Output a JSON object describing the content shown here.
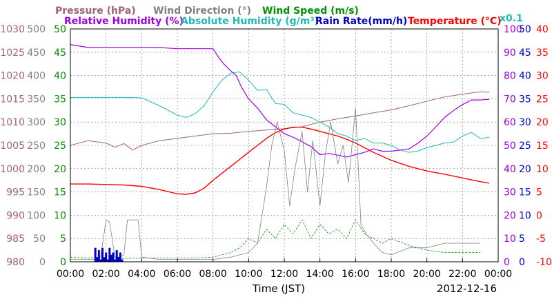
{
  "chart_data": {
    "type": "line",
    "date": "2012-12-16",
    "xlabel": "Time (JST)",
    "x_ticks": [
      "00:00",
      "02:00",
      "04:00",
      "06:00",
      "08:00",
      "10:00",
      "12:00",
      "14:00",
      "16:00",
      "18:00",
      "20:00",
      "22:00",
      "00:00"
    ],
    "xlim_hours": [
      0,
      24
    ],
    "grid": true,
    "colors": {
      "pressure": "#a0646e",
      "wind_direction": "#808080",
      "wind_speed": "#009000",
      "relative_humidity": "#a000e0",
      "absolute_humidity": "#20b8b8",
      "rain_rate": "#0000c8",
      "temperature": "#ff0000",
      "scale_0_1": "#20b8b8"
    },
    "legend": {
      "pressure": "Pressure (hPa)",
      "wind_direction": "Wind Direction (°)",
      "wind_speed": "Wind Speed (m/s)",
      "relative_humidity": "Relative Humidity (%)",
      "absolute_humidity": "Absolute Humidity (g/m³)",
      "rain_rate": "Rain Rate(mm/h)",
      "temperature": "Temperature (°C)",
      "scale_note": "x0.1"
    },
    "axes": {
      "pressure": {
        "ticks": [
          "1030",
          "1025",
          "1020",
          "1015",
          "1010",
          "1005",
          "1000",
          "995",
          "990",
          "985",
          "980"
        ],
        "range": [
          980,
          1030
        ]
      },
      "wind_direction": {
        "ticks": [
          "500",
          "450",
          "400",
          "350",
          "300",
          "250",
          "200",
          "150",
          "100",
          "50",
          "0"
        ],
        "range": [
          0,
          500
        ]
      },
      "wind_speed": {
        "ticks": [
          "50",
          "45",
          "40",
          "35",
          "30",
          "25",
          "20",
          "15",
          "10",
          "5",
          "0"
        ],
        "range": [
          0,
          50
        ]
      },
      "relative_humidity": {
        "ticks": [
          "100",
          "90",
          "80",
          "70",
          "60",
          "50",
          "40",
          "30",
          "20",
          "10",
          "0"
        ],
        "range": [
          0,
          100
        ]
      },
      "rain_rate": {
        "ticks": [
          "50",
          "45",
          "40",
          "35",
          "30",
          "25",
          "20",
          "15",
          "10",
          "5",
          "0"
        ],
        "range": [
          0,
          50
        ]
      },
      "temperature": {
        "ticks": [
          "40",
          "35",
          "30",
          "25",
          "20",
          "15",
          "10",
          "5",
          "0",
          "-5",
          "-10"
        ],
        "range": [
          -10,
          40
        ]
      }
    },
    "series": [
      {
        "key": "pressure",
        "axis": "pressure",
        "style": "solid",
        "width": 1,
        "x": [
          0,
          1,
          2,
          2.5,
          3,
          3.5,
          4,
          5,
          6,
          7,
          8,
          9,
          10,
          11,
          12,
          13,
          14,
          15,
          16,
          17,
          18,
          19,
          20,
          21,
          22,
          23,
          23.5
        ],
        "y": [
          1005.0,
          1006.0,
          1005.5,
          1004.6,
          1005.4,
          1004.0,
          1005.0,
          1006.0,
          1006.5,
          1007.0,
          1007.5,
          1007.6,
          1008.0,
          1008.3,
          1008.6,
          1009.0,
          1010.0,
          1010.7,
          1011.3,
          1012.0,
          1012.6,
          1013.5,
          1014.5,
          1015.4,
          1016.0,
          1016.5,
          1016.4
        ]
      },
      {
        "key": "absolute_humidity",
        "axis": "wind_speed",
        "style": "solid",
        "width": 1,
        "x": [
          0,
          1,
          2,
          3,
          4,
          5,
          6,
          6.5,
          7,
          7.5,
          8,
          8.5,
          9,
          9.5,
          10,
          10.5,
          11,
          11.5,
          12,
          12.5,
          13,
          13.5,
          14,
          14.5,
          15,
          15.5,
          16,
          16.5,
          17,
          17.5,
          18,
          18.5,
          19,
          19.5,
          20,
          20.5,
          21,
          21.5,
          22,
          22.5,
          23,
          23.5
        ],
        "y": [
          35.3,
          35.3,
          35.3,
          35.3,
          35.2,
          33.5,
          31.5,
          31.0,
          31.8,
          33.5,
          36.5,
          39.0,
          40.5,
          40.8,
          39.0,
          36.8,
          37.0,
          34.0,
          33.8,
          32.0,
          31.5,
          31.0,
          30.0,
          29.0,
          27.5,
          27.0,
          26.0,
          26.5,
          25.5,
          25.5,
          25.0,
          24.0,
          23.5,
          23.8,
          24.5,
          25.0,
          25.5,
          25.7,
          27.0,
          27.8,
          26.5,
          26.7
        ]
      },
      {
        "key": "relative_humidity",
        "axis": "relative_humidity",
        "style": "solid",
        "width": 1.2,
        "x": [
          0,
          1,
          2,
          3,
          4,
          5,
          6,
          7,
          8,
          8.3,
          8.6,
          9,
          9.3,
          9.6,
          10,
          10.5,
          11,
          11.5,
          12,
          12.5,
          13,
          13.5,
          14,
          14.5,
          15,
          15.5,
          16,
          16.5,
          17,
          17.5,
          18,
          18.5,
          19,
          19.5,
          20,
          20.5,
          21,
          21.5,
          22,
          22.5,
          23,
          23.5
        ],
        "y": [
          93.3,
          92.0,
          92.0,
          92.0,
          92.0,
          92.0,
          91.5,
          91.5,
          91.5,
          88.0,
          85.0,
          82.0,
          80.0,
          75.0,
          70.0,
          66.0,
          61.0,
          58.0,
          55.0,
          53.5,
          51.5,
          49.5,
          46.0,
          46.5,
          45.8,
          45.0,
          46.0,
          47.0,
          48.5,
          47.5,
          47.5,
          48.0,
          48.5,
          51.0,
          54.0,
          58.0,
          62.0,
          65.0,
          67.5,
          69.5,
          69.5,
          69.8
        ]
      },
      {
        "key": "temperature",
        "axis": "temperature",
        "style": "solid",
        "width": 1.4,
        "x": [
          0,
          1,
          2,
          3,
          4,
          5,
          6,
          6.5,
          7,
          7.5,
          8,
          8.5,
          9,
          9.5,
          10,
          10.5,
          11,
          11.5,
          12,
          12.5,
          13,
          13.5,
          14,
          14.5,
          15,
          15.5,
          16,
          17,
          18,
          19,
          20,
          21,
          22,
          23,
          23.5
        ],
        "y": [
          6.7,
          6.7,
          6.6,
          6.5,
          6.2,
          5.5,
          4.6,
          4.5,
          4.8,
          5.8,
          7.5,
          9.0,
          10.5,
          12.0,
          13.5,
          15.0,
          16.5,
          17.7,
          18.5,
          18.9,
          18.9,
          18.5,
          18.0,
          17.5,
          17.0,
          16.3,
          15.5,
          13.5,
          11.8,
          10.5,
          9.5,
          8.8,
          8.0,
          7.2,
          6.9
        ]
      },
      {
        "key": "wind_direction",
        "axis": "wind_direction",
        "style": "solid",
        "width": 0.8,
        "x": [
          0,
          1,
          1.5,
          1.7,
          2,
          2.2,
          2.5,
          2.8,
          3,
          3.2,
          3.5,
          3.8,
          4,
          5,
          6,
          7,
          8,
          9,
          9.5,
          10,
          10.5,
          11,
          11.3,
          11.6,
          12,
          12.3,
          12.6,
          13,
          13.3,
          13.6,
          14,
          14.3,
          14.6,
          15,
          15.3,
          15.6,
          16,
          16.3,
          16.6,
          17,
          17.5,
          18,
          19,
          20,
          21,
          22,
          23
        ],
        "y": [
          5,
          5,
          5,
          10,
          90,
          85,
          10,
          10,
          15,
          90,
          90,
          90,
          10,
          5,
          5,
          5,
          5,
          10,
          15,
          20,
          40,
          160,
          250,
          300,
          240,
          120,
          200,
          280,
          150,
          260,
          120,
          230,
          300,
          210,
          250,
          170,
          330,
          80,
          60,
          40,
          20,
          15,
          30,
          30,
          40,
          40,
          40
        ]
      },
      {
        "key": "wind_speed",
        "axis": "wind_speed",
        "style": "dashed",
        "width": 0.8,
        "x": [
          0,
          1,
          2,
          3,
          4,
          5,
          6,
          7,
          8,
          9,
          9.5,
          10,
          10.5,
          11,
          11.5,
          12,
          12.5,
          13,
          13.5,
          14,
          14.5,
          15,
          15.5,
          16,
          16.5,
          17,
          17.5,
          18,
          19,
          20,
          21,
          22,
          23
        ],
        "y": [
          1,
          0.8,
          1.2,
          0.7,
          0.8,
          0.8,
          0.8,
          0.8,
          1,
          2,
          3,
          5,
          4,
          7,
          5,
          8,
          6,
          9,
          5,
          8,
          6,
          7,
          5,
          9,
          6,
          5,
          4,
          5,
          3.5,
          2.5,
          2,
          2,
          2
        ]
      },
      {
        "key": "rain_rate",
        "axis": "rain_rate",
        "style": "fill",
        "width": 1,
        "x": [
          1.3,
          1.4,
          1.5,
          1.6,
          1.7,
          1.8,
          1.9,
          2.0,
          2.1,
          2.2,
          2.3,
          2.4,
          2.5,
          2.6,
          2.7,
          2.8,
          2.9,
          3.0
        ],
        "y": [
          0,
          3,
          1,
          2.5,
          0.5,
          3,
          1,
          2,
          0.5,
          3,
          1.5,
          2,
          0.5,
          2.5,
          1,
          2,
          0.5,
          0
        ]
      }
    ]
  }
}
